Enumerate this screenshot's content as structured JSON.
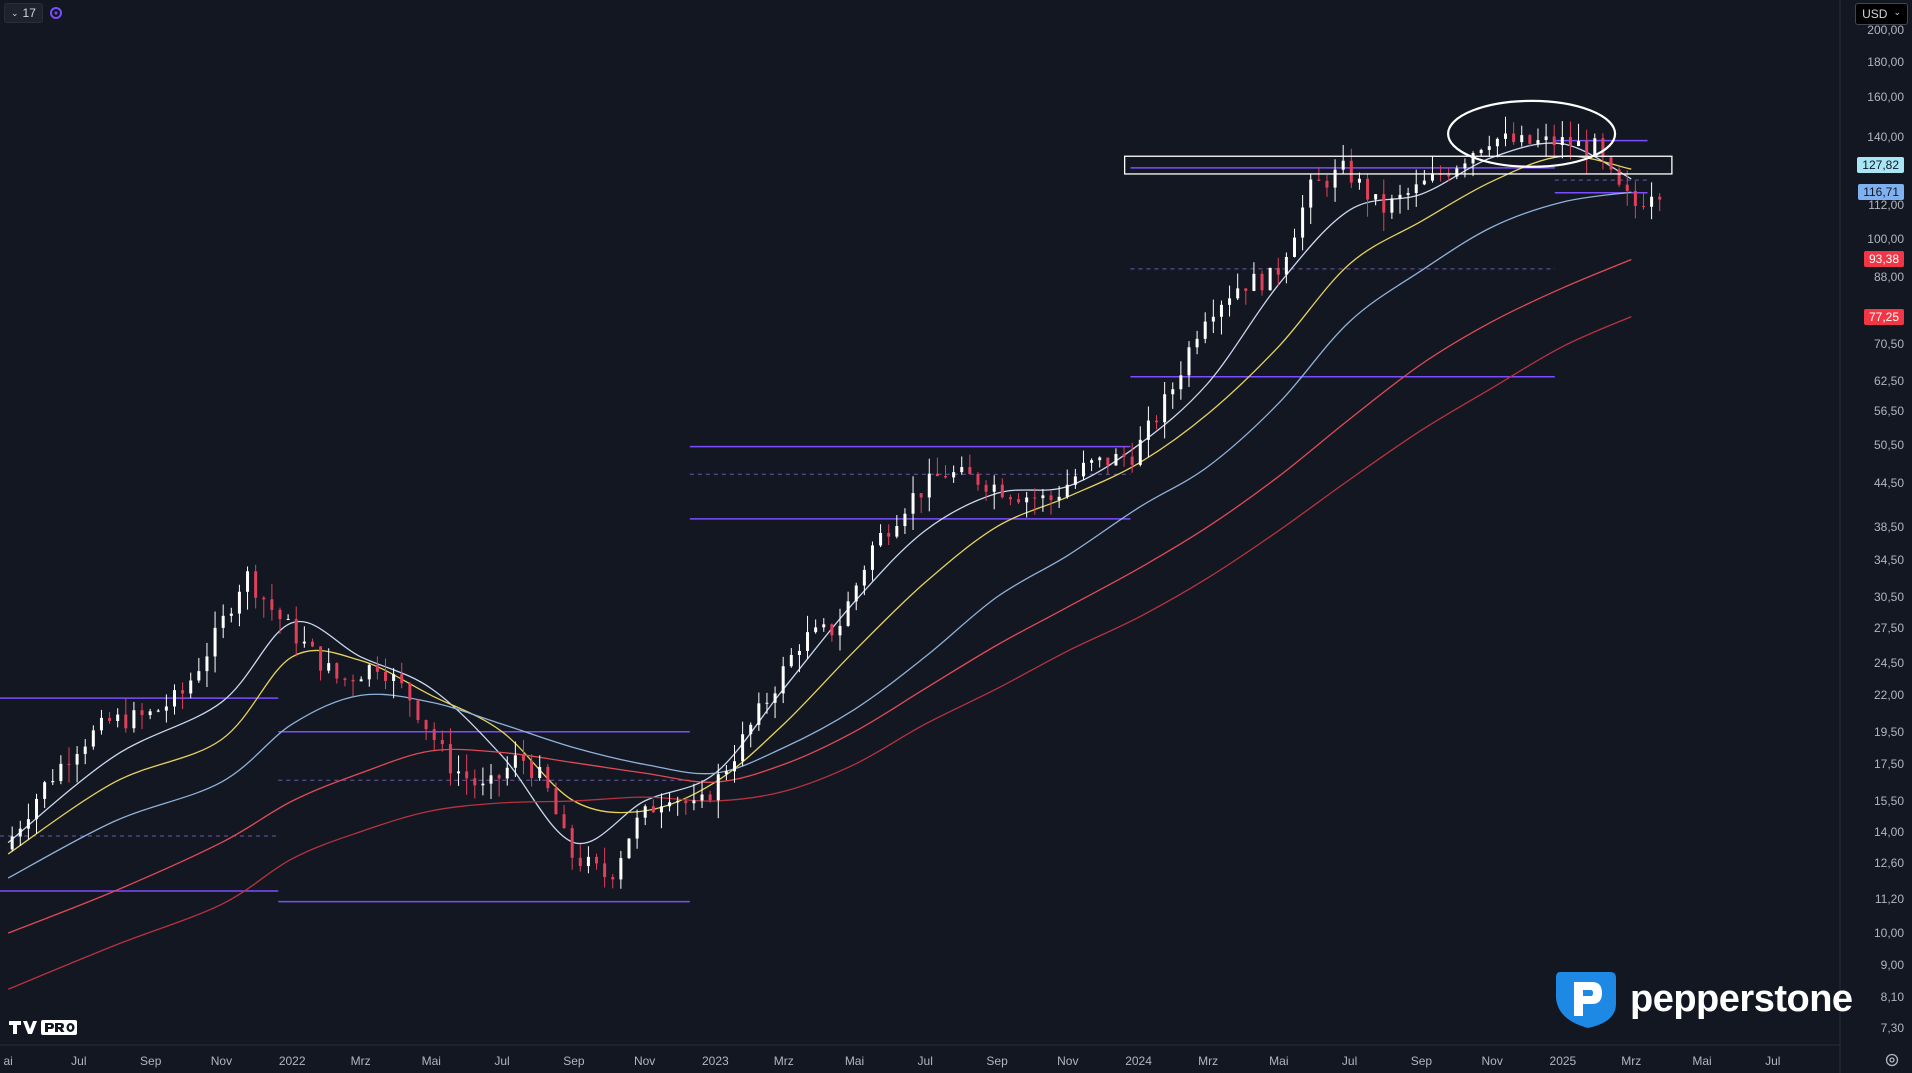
{
  "toolbar": {
    "interval_label": "17",
    "currency_label": "USD"
  },
  "price_labels": [
    {
      "text": "127,82",
      "value": 127.82,
      "bg": "#a8e6f5",
      "fg": "#131722"
    },
    {
      "text": "116,71",
      "value": 116.71,
      "bg": "#7fb0f0",
      "fg": "#131722"
    },
    {
      "text": "93,38",
      "value": 93.38,
      "bg": "#f23645",
      "fg": "#ffffff"
    },
    {
      "text": "77,25",
      "value": 77.25,
      "bg": "#f23645",
      "fg": "#ffffff"
    }
  ],
  "y_ticks": [
    {
      "label": "200,00",
      "value": 200
    },
    {
      "label": "180,00",
      "value": 180
    },
    {
      "label": "160,00",
      "value": 160
    },
    {
      "label": "140,00",
      "value": 140
    },
    {
      "label": "112,00",
      "value": 112
    },
    {
      "label": "100,00",
      "value": 100
    },
    {
      "label": "88,00",
      "value": 88
    },
    {
      "label": "70,50",
      "value": 70.5
    },
    {
      "label": "62,50",
      "value": 62.5
    },
    {
      "label": "56,50",
      "value": 56.5
    },
    {
      "label": "50,50",
      "value": 50.5
    },
    {
      "label": "44,50",
      "value": 44.5
    },
    {
      "label": "38,50",
      "value": 38.5
    },
    {
      "label": "34,50",
      "value": 34.5
    },
    {
      "label": "30,50",
      "value": 30.5
    },
    {
      "label": "27,50",
      "value": 27.5
    },
    {
      "label": "24,50",
      "value": 24.5
    },
    {
      "label": "22,00",
      "value": 22
    },
    {
      "label": "19,50",
      "value": 19.5
    },
    {
      "label": "17,50",
      "value": 17.5
    },
    {
      "label": "15,50",
      "value": 15.5
    },
    {
      "label": "14,00",
      "value": 14
    },
    {
      "label": "12,60",
      "value": 12.6
    },
    {
      "label": "11,20",
      "value": 11.2
    },
    {
      "label": "10,00",
      "value": 10
    },
    {
      "label": "9,00",
      "value": 9
    },
    {
      "label": "8,10",
      "value": 8.1
    },
    {
      "label": "7,30",
      "value": 7.3
    }
  ],
  "x_ticks": [
    {
      "label": "ai",
      "date": "2021-05"
    },
    {
      "label": "Jul",
      "date": "2021-07"
    },
    {
      "label": "Sep",
      "date": "2021-09"
    },
    {
      "label": "Nov",
      "date": "2021-11"
    },
    {
      "label": "2022",
      "date": "2022-01"
    },
    {
      "label": "Mrz",
      "date": "2022-03"
    },
    {
      "label": "Mai",
      "date": "2022-05"
    },
    {
      "label": "Jul",
      "date": "2022-07"
    },
    {
      "label": "Sep",
      "date": "2022-09"
    },
    {
      "label": "Nov",
      "date": "2022-11"
    },
    {
      "label": "2023",
      "date": "2023-01"
    },
    {
      "label": "Mrz",
      "date": "2023-03"
    },
    {
      "label": "Mai",
      "date": "2023-05"
    },
    {
      "label": "Jul",
      "date": "2023-07"
    },
    {
      "label": "Sep",
      "date": "2023-09"
    },
    {
      "label": "Nov",
      "date": "2023-11"
    },
    {
      "label": "2024",
      "date": "2024-01"
    },
    {
      "label": "Mrz",
      "date": "2024-03"
    },
    {
      "label": "Mai",
      "date": "2024-05"
    },
    {
      "label": "Jul",
      "date": "2024-07"
    },
    {
      "label": "Sep",
      "date": "2024-09"
    },
    {
      "label": "Nov",
      "date": "2024-11"
    },
    {
      "label": "2025",
      "date": "2025-01"
    },
    {
      "label": "Mrz",
      "date": "2025-03"
    },
    {
      "label": "Mai",
      "date": "2025-05"
    },
    {
      "label": "Jul",
      "date": "2025-07"
    }
  ],
  "chart_data": {
    "type": "candlestick",
    "y_scale": "log",
    "ylim": [
      6.9,
      215
    ],
    "xlim": [
      "2021-04-24",
      "2025-08-28"
    ],
    "grid": false,
    "colors": {
      "up": "#ffffff",
      "down": "#e0405a"
    },
    "moving_averages": [
      {
        "color": "#c8d8ee",
        "points": [
          [
            "2021-05-01",
            13.5
          ],
          [
            "2021-08-01",
            18
          ],
          [
            "2021-11-01",
            21.5
          ],
          [
            "2022-01-01",
            28
          ],
          [
            "2022-03-01",
            25
          ],
          [
            "2022-05-01",
            22.5
          ],
          [
            "2022-07-01",
            18
          ],
          [
            "2022-09-01",
            13.5
          ],
          [
            "2022-11-01",
            15.5
          ],
          [
            "2023-01-01",
            17
          ],
          [
            "2023-03-01",
            22.5
          ],
          [
            "2023-05-01",
            30
          ],
          [
            "2023-07-01",
            38
          ],
          [
            "2023-09-01",
            43
          ],
          [
            "2023-11-01",
            44
          ],
          [
            "2024-01-01",
            50.5
          ],
          [
            "2024-03-01",
            62
          ],
          [
            "2024-05-01",
            86
          ],
          [
            "2024-07-01",
            110
          ],
          [
            "2024-09-01",
            116
          ],
          [
            "2024-11-01",
            131
          ],
          [
            "2025-01-01",
            137
          ],
          [
            "2025-03-01",
            122
          ]
        ]
      },
      {
        "color": "#e6d25a",
        "points": [
          [
            "2021-05-01",
            13
          ],
          [
            "2021-08-01",
            16.5
          ],
          [
            "2021-11-01",
            19
          ],
          [
            "2022-01-01",
            25
          ],
          [
            "2022-03-01",
            24.7
          ],
          [
            "2022-05-01",
            22
          ],
          [
            "2022-07-01",
            19.5
          ],
          [
            "2022-09-01",
            15.5
          ],
          [
            "2022-11-01",
            15
          ],
          [
            "2023-01-01",
            16.5
          ],
          [
            "2023-03-01",
            20
          ],
          [
            "2023-05-01",
            25.5
          ],
          [
            "2023-07-01",
            32
          ],
          [
            "2023-09-01",
            38.5
          ],
          [
            "2023-11-01",
            42.5
          ],
          [
            "2024-01-01",
            47.5
          ],
          [
            "2024-03-01",
            56
          ],
          [
            "2024-05-01",
            70
          ],
          [
            "2024-07-01",
            92
          ],
          [
            "2024-09-01",
            106
          ],
          [
            "2024-11-01",
            121
          ],
          [
            "2025-01-01",
            131.5
          ],
          [
            "2025-03-01",
            126
          ]
        ]
      },
      {
        "color": "#8fb2d9",
        "points": [
          [
            "2021-05-01",
            12
          ],
          [
            "2021-08-01",
            14.5
          ],
          [
            "2021-11-01",
            16.5
          ],
          [
            "2022-01-01",
            20
          ],
          [
            "2022-03-01",
            22
          ],
          [
            "2022-05-01",
            21.5
          ],
          [
            "2022-07-01",
            20
          ],
          [
            "2022-09-01",
            18.5
          ],
          [
            "2022-11-01",
            17.5
          ],
          [
            "2023-01-01",
            17
          ],
          [
            "2023-03-01",
            18.5
          ],
          [
            "2023-05-01",
            21
          ],
          [
            "2023-07-01",
            25
          ],
          [
            "2023-09-01",
            30.5
          ],
          [
            "2023-11-01",
            35
          ],
          [
            "2024-01-01",
            41
          ],
          [
            "2024-03-01",
            47
          ],
          [
            "2024-05-01",
            58
          ],
          [
            "2024-07-01",
            76
          ],
          [
            "2024-09-01",
            90
          ],
          [
            "2024-11-01",
            104
          ],
          [
            "2025-01-01",
            113
          ],
          [
            "2025-03-01",
            116.71
          ]
        ]
      },
      {
        "color": "#e04a55",
        "points": [
          [
            "2021-05-01",
            10
          ],
          [
            "2021-08-01",
            11.5
          ],
          [
            "2021-11-01",
            13.5
          ],
          [
            "2022-01-01",
            15.5
          ],
          [
            "2022-03-01",
            17
          ],
          [
            "2022-05-01",
            18.3
          ],
          [
            "2022-07-01",
            18.2
          ],
          [
            "2022-09-01",
            17.6
          ],
          [
            "2022-11-01",
            17
          ],
          [
            "2023-01-01",
            16.5
          ],
          [
            "2023-03-01",
            17.5
          ],
          [
            "2023-05-01",
            19.5
          ],
          [
            "2023-07-01",
            22.5
          ],
          [
            "2023-09-01",
            26
          ],
          [
            "2023-11-01",
            29.5
          ],
          [
            "2024-01-01",
            33.5
          ],
          [
            "2024-03-01",
            38.5
          ],
          [
            "2024-05-01",
            45.5
          ],
          [
            "2024-07-01",
            55
          ],
          [
            "2024-09-01",
            66
          ],
          [
            "2024-11-01",
            76
          ],
          [
            "2025-01-01",
            85
          ],
          [
            "2025-03-01",
            93.38
          ]
        ]
      },
      {
        "color": "#b8323f",
        "points": [
          [
            "2021-05-01",
            8.3
          ],
          [
            "2021-08-01",
            9.6
          ],
          [
            "2021-11-01",
            11
          ],
          [
            "2022-01-01",
            12.8
          ],
          [
            "2022-03-01",
            14
          ],
          [
            "2022-05-01",
            15
          ],
          [
            "2022-07-01",
            15.4
          ],
          [
            "2022-09-01",
            15.5
          ],
          [
            "2022-11-01",
            15.7
          ],
          [
            "2023-01-01",
            15.5
          ],
          [
            "2023-03-01",
            16
          ],
          [
            "2023-05-01",
            17.5
          ],
          [
            "2023-07-01",
            20
          ],
          [
            "2023-09-01",
            22.5
          ],
          [
            "2023-11-01",
            25.5
          ],
          [
            "2024-01-01",
            28.5
          ],
          [
            "2024-03-01",
            32.5
          ],
          [
            "2024-05-01",
            38
          ],
          [
            "2024-07-01",
            45
          ],
          [
            "2024-09-01",
            53
          ],
          [
            "2024-11-01",
            61
          ],
          [
            "2025-01-01",
            70
          ],
          [
            "2025-03-01",
            77.25
          ]
        ]
      }
    ],
    "horizontal_lines": [
      {
        "from": "2021-04-24",
        "to": "2021-12-20",
        "price": 21.8,
        "style": "solid"
      },
      {
        "from": "2021-04-24",
        "to": "2021-12-20",
        "price": 11.5,
        "style": "solid"
      },
      {
        "from": "2021-04-24",
        "to": "2021-12-20",
        "price": 13.8,
        "style": "dashed"
      },
      {
        "from": "2021-12-20",
        "to": "2022-12-10",
        "price": 19.5,
        "style": "solid"
      },
      {
        "from": "2021-12-20",
        "to": "2022-12-10",
        "price": 11.1,
        "style": "solid"
      },
      {
        "from": "2021-12-20",
        "to": "2022-12-10",
        "price": 16.6,
        "style": "dashed"
      },
      {
        "from": "2022-12-10",
        "to": "2023-12-25",
        "price": 50.2,
        "style": "solid"
      },
      {
        "from": "2022-12-10",
        "to": "2023-12-25",
        "price": 39.5,
        "style": "solid"
      },
      {
        "from": "2022-12-10",
        "to": "2023-12-25",
        "price": 45.8,
        "style": "dashed"
      },
      {
        "from": "2023-12-25",
        "to": "2024-12-25",
        "price": 63.3,
        "style": "solid"
      },
      {
        "from": "2023-12-25",
        "to": "2024-12-25",
        "price": 90.5,
        "style": "dashed"
      },
      {
        "from": "2023-12-25",
        "to": "2024-12-25",
        "price": 126.5,
        "style": "solid"
      },
      {
        "from": "2024-12-25",
        "to": "2025-03-15",
        "price": 138.5,
        "style": "solid"
      },
      {
        "from": "2024-12-25",
        "to": "2025-03-15",
        "price": 116.5,
        "style": "solid"
      },
      {
        "from": "2024-12-25",
        "to": "2025-03-15",
        "price": 121.5,
        "style": "dashed"
      }
    ],
    "shapes": [
      {
        "type": "rectangle",
        "from": "2023-12-20",
        "to": "2025-04-05",
        "price_top": 131.5,
        "price_bottom": 124
      },
      {
        "type": "ellipse",
        "center": "2024-12-05",
        "price_center": 141,
        "half_width_days": 72,
        "price_top": 158,
        "price_bottom": 127
      }
    ],
    "waypoints": [
      [
        "2021-05-01",
        13.2
      ],
      [
        "2021-06-01",
        16
      ],
      [
        "2021-07-01",
        18.5
      ],
      [
        "2021-08-01",
        20.2
      ],
      [
        "2021-09-01",
        20.5
      ],
      [
        "2021-10-01",
        22
      ],
      [
        "2021-11-01",
        27
      ],
      [
        "2021-11-25",
        33
      ],
      [
        "2021-12-20",
        29
      ],
      [
        "2022-01-15",
        26
      ],
      [
        "2022-02-15",
        23
      ],
      [
        "2022-03-20",
        24.5
      ],
      [
        "2022-04-15",
        22
      ],
      [
        "2022-05-20",
        17.5
      ],
      [
        "2022-06-20",
        16
      ],
      [
        "2022-07-20",
        18
      ],
      [
        "2022-08-10",
        16.5
      ],
      [
        "2022-09-01",
        13
      ],
      [
        "2022-10-05",
        12
      ],
      [
        "2022-10-25",
        14.2
      ],
      [
        "2022-11-25",
        16
      ],
      [
        "2022-12-20",
        15
      ],
      [
        "2023-01-20",
        18
      ],
      [
        "2023-02-20",
        22
      ],
      [
        "2023-03-20",
        26.5
      ],
      [
        "2023-04-20",
        27.5
      ],
      [
        "2023-05-20",
        36
      ],
      [
        "2023-06-20",
        42
      ],
      [
        "2023-07-20",
        46
      ],
      [
        "2023-08-20",
        45
      ],
      [
        "2023-09-20",
        43
      ],
      [
        "2023-10-20",
        42
      ],
      [
        "2023-11-20",
        47
      ],
      [
        "2024-01-01",
        49
      ],
      [
        "2024-02-01",
        60
      ],
      [
        "2024-03-01",
        78
      ],
      [
        "2024-04-01",
        86
      ],
      [
        "2024-05-01",
        88
      ],
      [
        "2024-06-01",
        118
      ],
      [
        "2024-07-01",
        126
      ],
      [
        "2024-08-01",
        110
      ],
      [
        "2024-09-01",
        118
      ],
      [
        "2024-10-01",
        127
      ],
      [
        "2024-11-01",
        140
      ],
      [
        "2024-12-01",
        137
      ],
      [
        "2025-01-01",
        138
      ],
      [
        "2025-02-01",
        135
      ],
      [
        "2025-02-20",
        118
      ],
      [
        "2025-03-10",
        111
      ],
      [
        "2025-03-20",
        118
      ]
    ]
  }
}
